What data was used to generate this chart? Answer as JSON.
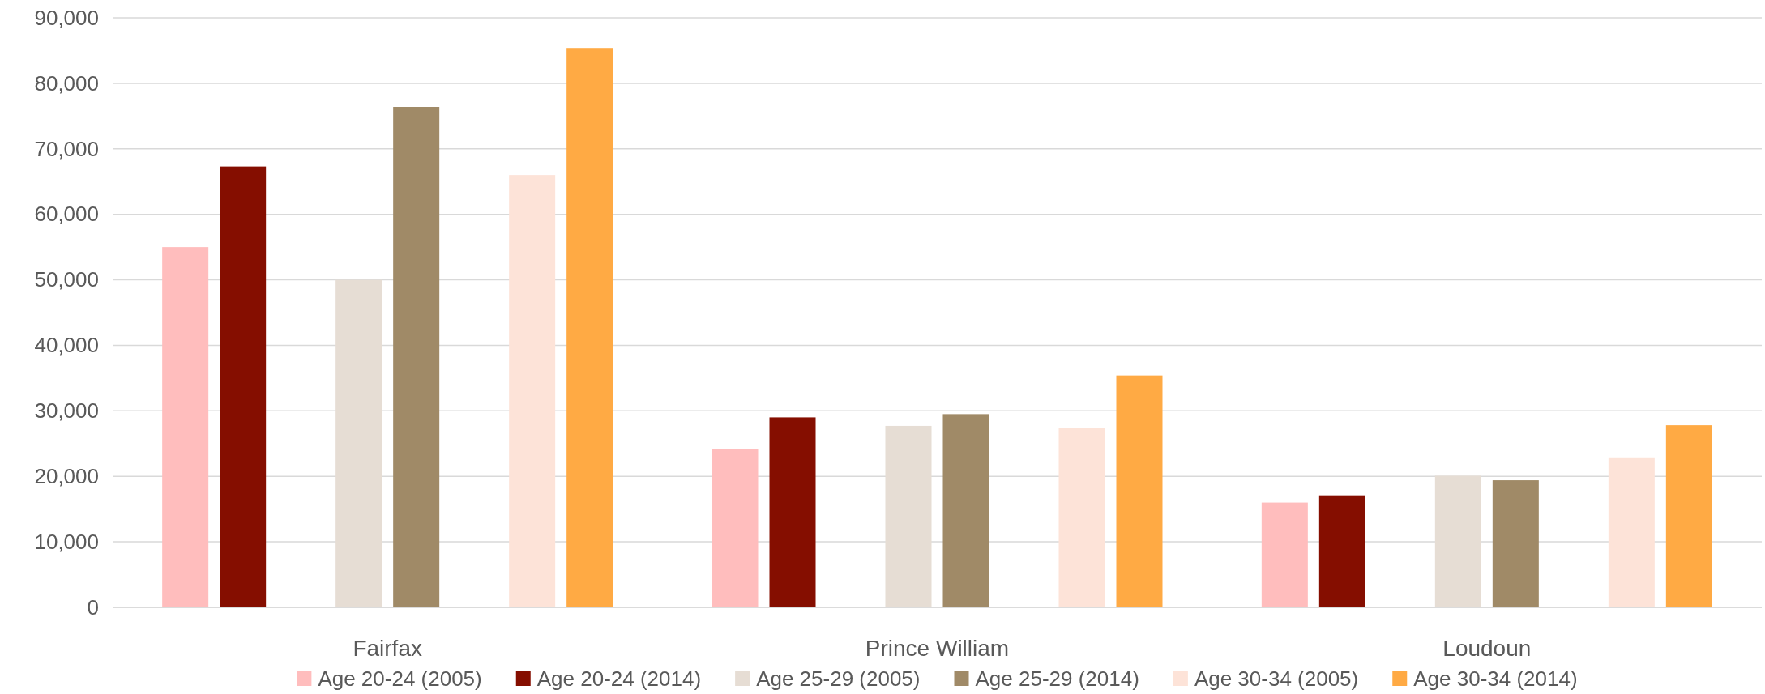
{
  "chart_data": {
    "type": "bar",
    "categories": [
      "Fairfax",
      "Prince William",
      "Loudoun"
    ],
    "series": [
      {
        "name": "Age 20-24 (2005)",
        "color": "#ffbdbd",
        "values": [
          55000,
          24200,
          16000
        ]
      },
      {
        "name": "Age 20-24 (2014)",
        "color": "#850e00",
        "values": [
          67300,
          29000,
          17100
        ]
      },
      {
        "name": "Age 25-29 (2005)",
        "color": "#e6ddd4",
        "values": [
          50000,
          27700,
          20100
        ]
      },
      {
        "name": "Age 25-29 (2014)",
        "color": "#a08a67",
        "values": [
          76400,
          29500,
          19400
        ]
      },
      {
        "name": "Age 30-34 (2005)",
        "color": "#fde3d8",
        "values": [
          66000,
          27400,
          22900
        ]
      },
      {
        "name": "Age 30-34 (2014)",
        "color": "#ffaa44",
        "values": [
          85400,
          35400,
          27800
        ]
      }
    ],
    "ylim": [
      0,
      90000
    ],
    "yticks": [
      {
        "value": 0,
        "label": "0"
      },
      {
        "value": 10000,
        "label": "10,000"
      },
      {
        "value": 20000,
        "label": "20,000"
      },
      {
        "value": 30000,
        "label": "30,000"
      },
      {
        "value": 40000,
        "label": "40,000"
      },
      {
        "value": 50000,
        "label": "50,000"
      },
      {
        "value": 60000,
        "label": "60,000"
      },
      {
        "value": 70000,
        "label": "70,000"
      },
      {
        "value": 80000,
        "label": "80,000"
      },
      {
        "value": 90000,
        "label": "90,000"
      }
    ],
    "grid": "y",
    "legend": "bottom"
  }
}
